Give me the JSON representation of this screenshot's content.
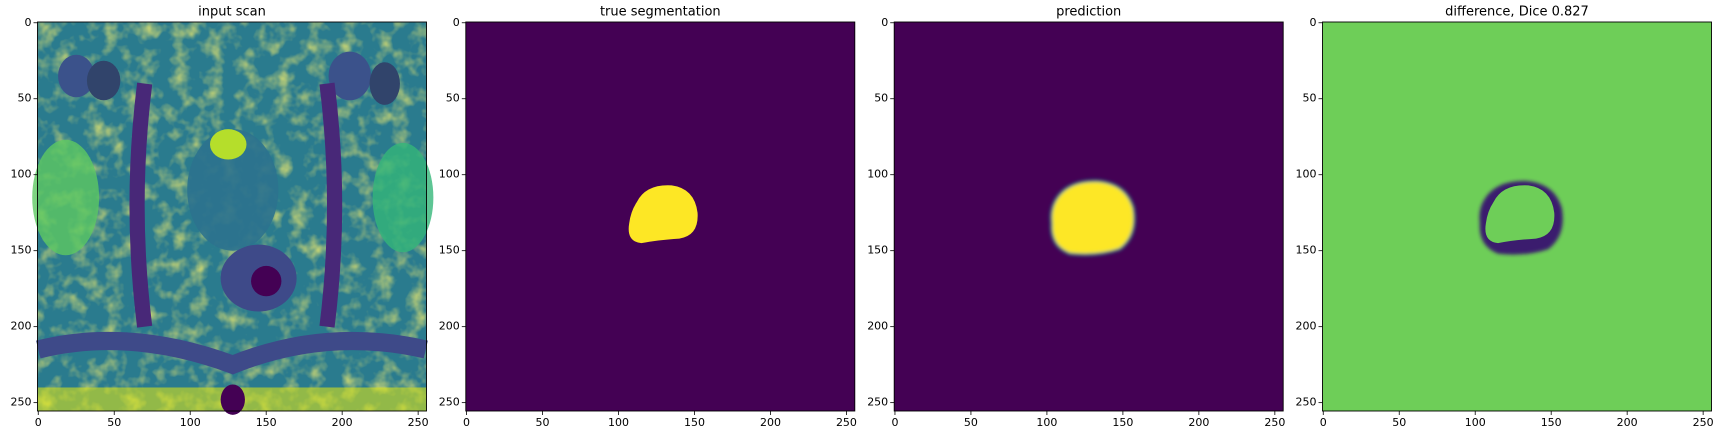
{
  "chart_data": [
    {
      "type": "image",
      "title": "input scan",
      "xlim": [
        -0.5,
        255.5
      ],
      "ylim": [
        255.5,
        -0.5
      ],
      "xticks": [
        0,
        50,
        100,
        150,
        200,
        250
      ],
      "yticks": [
        0,
        50,
        100,
        150,
        200,
        250
      ]
    },
    {
      "type": "image",
      "title": "true segmentation",
      "xlim": [
        -0.5,
        255.5
      ],
      "ylim": [
        255.5,
        -0.5
      ],
      "xticks": [
        0,
        50,
        100,
        150,
        200,
        250
      ],
      "yticks": [
        0,
        50,
        100,
        150,
        200,
        250
      ]
    },
    {
      "type": "image",
      "title": "prediction",
      "xlim": [
        -0.5,
        255.5
      ],
      "ylim": [
        255.5,
        -0.5
      ],
      "xticks": [
        0,
        50,
        100,
        150,
        200,
        250
      ],
      "yticks": [
        0,
        50,
        100,
        150,
        200,
        250
      ]
    },
    {
      "type": "image",
      "title": "difference, Dice 0.827",
      "xlim": [
        -0.5,
        255.5
      ],
      "ylim": [
        255.5,
        -0.5
      ],
      "xticks": [
        0,
        50,
        100,
        150,
        200,
        250
      ],
      "yticks": [
        0,
        50,
        100,
        150,
        200,
        250
      ]
    }
  ]
}
